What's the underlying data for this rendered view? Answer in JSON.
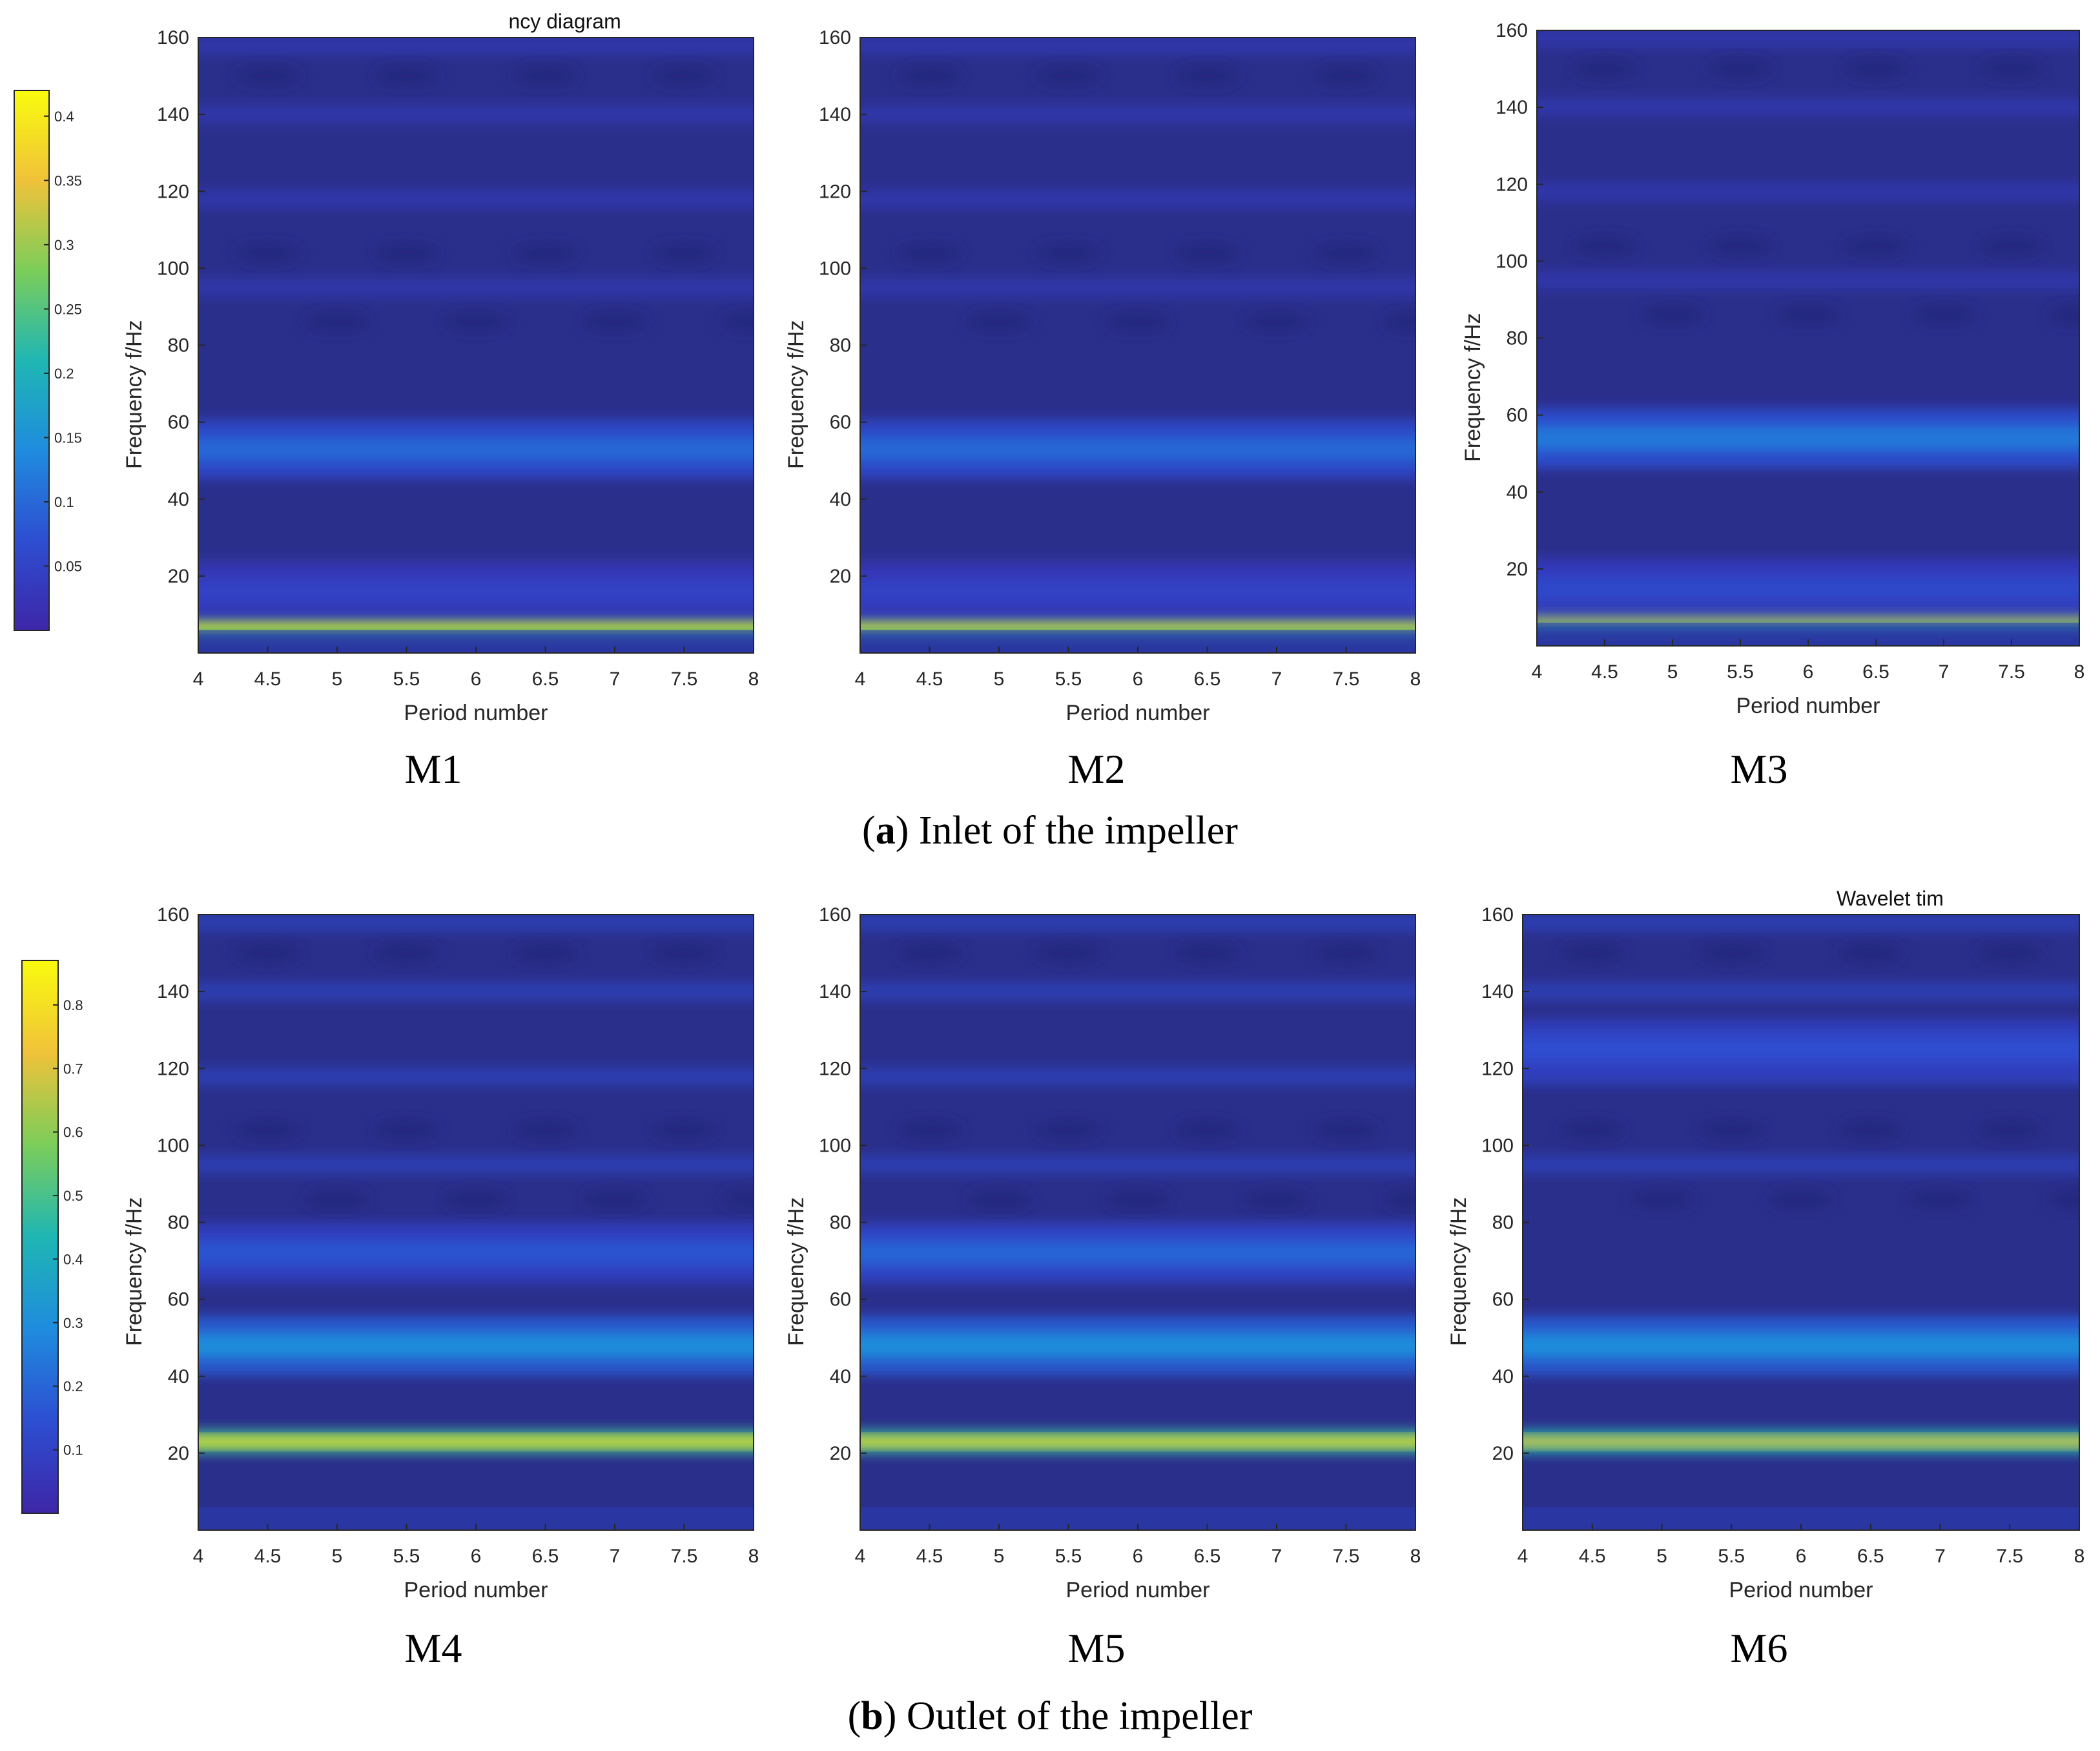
{
  "figure": {
    "captions": [
      {
        "letter": "a",
        "open": "(",
        "close": ")",
        "text": " Inlet of the impeller"
      },
      {
        "letter": "b",
        "open": "(",
        "close": ")",
        "text": " Outlet of the impeller"
      }
    ]
  },
  "colors": {
    "background": "#2b2f8c",
    "dark_spot": "#24287a",
    "colormap": [
      "#3e26a8",
      "#2d4ed1",
      "#1f8cde",
      "#1fb6b3",
      "#7ccd5a",
      "#f0c23a",
      "#f9fb0e"
    ]
  },
  "colorbars": [
    {
      "row": "a",
      "ticks": [
        "0.4",
        "0.35",
        "0.3",
        "0.25",
        "0.2",
        "0.15",
        "0.1",
        "0.05"
      ],
      "tick_values": [
        0.4,
        0.35,
        0.3,
        0.25,
        0.2,
        0.15,
        0.1,
        0.05
      ],
      "range": [
        0.0,
        0.42
      ]
    },
    {
      "row": "b",
      "ticks": [
        "0.8",
        "0.7",
        "0.6",
        "0.5",
        "0.4",
        "0.3",
        "0.2",
        "0.1"
      ],
      "tick_values": [
        0.8,
        0.7,
        0.6,
        0.5,
        0.4,
        0.3,
        0.2,
        0.1
      ],
      "range": [
        0.0,
        0.87
      ]
    }
  ],
  "chart_data": [
    {
      "type": "heatmap",
      "name": "M1",
      "title": "ncy diagram",
      "xlabel": "Period number",
      "ylabel": "Frequency f/Hz",
      "xlim": [
        4,
        8
      ],
      "ylim": [
        0,
        160
      ],
      "xticks": [
        "4",
        "4.5",
        "5",
        "5.5",
        "6",
        "6.5",
        "7",
        "7.5",
        "8"
      ],
      "yticks": [
        "20",
        "40",
        "60",
        "80",
        "100",
        "120",
        "140",
        "160"
      ],
      "bands": [
        {
          "freq_hz": 7.5,
          "intensity": 0.41
        },
        {
          "freq_hz": 53,
          "intensity": 0.1
        },
        {
          "freq_hz": 16,
          "intensity": 0.05
        }
      ]
    },
    {
      "type": "heatmap",
      "name": "M2",
      "title": "",
      "xlabel": "Period number",
      "ylabel": "Frequency f/Hz",
      "xlim": [
        4,
        8
      ],
      "ylim": [
        0,
        160
      ],
      "xticks": [
        "4",
        "4.5",
        "5",
        "5.5",
        "6",
        "6.5",
        "7",
        "7.5",
        "8"
      ],
      "yticks": [
        "20",
        "40",
        "60",
        "80",
        "100",
        "120",
        "140",
        "160"
      ],
      "bands": [
        {
          "freq_hz": 7.5,
          "intensity": 0.4
        },
        {
          "freq_hz": 53,
          "intensity": 0.1
        },
        {
          "freq_hz": 16,
          "intensity": 0.05
        }
      ]
    },
    {
      "type": "heatmap",
      "name": "M3",
      "title": "",
      "xlabel": "Period number",
      "ylabel": "Frequency f/Hz",
      "xlim": [
        4,
        8
      ],
      "ylim": [
        0,
        160
      ],
      "xticks": [
        "4",
        "4.5",
        "5",
        "5.5",
        "6",
        "6.5",
        "7",
        "7.5",
        "8"
      ],
      "yticks": [
        "20",
        "40",
        "60",
        "80",
        "100",
        "120",
        "140",
        "160"
      ],
      "bands": [
        {
          "freq_hz": 7.5,
          "intensity": 0.38
        },
        {
          "freq_hz": 54,
          "intensity": 0.12
        },
        {
          "freq_hz": 15,
          "intensity": 0.06
        }
      ]
    },
    {
      "type": "heatmap",
      "name": "M4",
      "title": "",
      "xlabel": "Period number",
      "ylabel": "Frequency f/Hz",
      "xlim": [
        4,
        8
      ],
      "ylim": [
        0,
        160
      ],
      "xticks": [
        "4",
        "4.5",
        "5",
        "5.5",
        "6",
        "6.5",
        "7",
        "7.5",
        "8"
      ],
      "yticks": [
        "20",
        "40",
        "60",
        "80",
        "100",
        "120",
        "140",
        "160"
      ],
      "bands": [
        {
          "freq_hz": 23,
          "intensity": 0.82
        },
        {
          "freq_hz": 48,
          "intensity": 0.3
        },
        {
          "freq_hz": 72,
          "intensity": 0.16
        }
      ]
    },
    {
      "type": "heatmap",
      "name": "M5",
      "title": "",
      "xlabel": "Period number",
      "ylabel": "Frequency f/Hz",
      "xlim": [
        4,
        8
      ],
      "ylim": [
        0,
        160
      ],
      "xticks": [
        "4",
        "4.5",
        "5",
        "5.5",
        "6",
        "6.5",
        "7",
        "7.5",
        "8"
      ],
      "yticks": [
        "20",
        "40",
        "60",
        "80",
        "100",
        "120",
        "140",
        "160"
      ],
      "bands": [
        {
          "freq_hz": 23,
          "intensity": 0.8
        },
        {
          "freq_hz": 48,
          "intensity": 0.3
        },
        {
          "freq_hz": 72,
          "intensity": 0.2
        }
      ]
    },
    {
      "type": "heatmap",
      "name": "M6",
      "title": "Wavelet tim",
      "xlabel": "Period number",
      "ylabel": "Frequency f/Hz",
      "xlim": [
        4,
        8
      ],
      "ylim": [
        0,
        160
      ],
      "xticks": [
        "4",
        "4.5",
        "5",
        "5.5",
        "6",
        "6.5",
        "7",
        "7.5",
        "8"
      ],
      "yticks": [
        "20",
        "40",
        "60",
        "80",
        "100",
        "120",
        "140",
        "160"
      ],
      "bands": [
        {
          "freq_hz": 23,
          "intensity": 0.75
        },
        {
          "freq_hz": 48,
          "intensity": 0.3
        },
        {
          "freq_hz": 125,
          "intensity": 0.15
        }
      ]
    }
  ]
}
